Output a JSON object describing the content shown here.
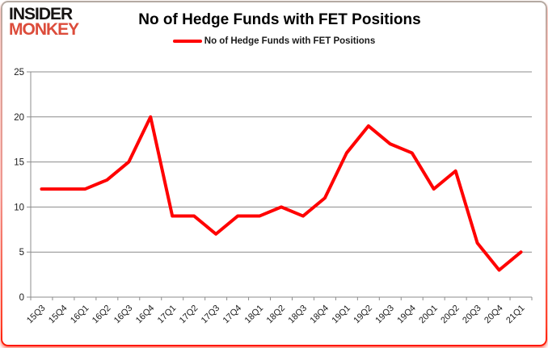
{
  "logo": {
    "line1": "INSIDER",
    "line2": "MONKEY"
  },
  "header": {
    "title": "No of Hedge Funds with FET Positions"
  },
  "legend": {
    "label": "No of Hedge Funds with FET Positions"
  },
  "colors": {
    "line": "#ff0000",
    "grid": "#8c8c8c",
    "axis": "#8c8c8c",
    "tick_text": "#1a1a1a",
    "logo_monkey": "#dc4c3b",
    "title_text": "#000000"
  },
  "chart_data": {
    "type": "line",
    "title": "No of Hedge Funds with FET Positions",
    "categories": [
      "15Q3",
      "15Q4",
      "16Q1",
      "16Q2",
      "16Q3",
      "16Q4",
      "17Q1",
      "17Q2",
      "17Q3",
      "17Q4",
      "18Q1",
      "18Q2",
      "18Q3",
      "18Q4",
      "19Q1",
      "19Q2",
      "19Q3",
      "19Q4",
      "20Q1",
      "20Q2",
      "20Q3",
      "20Q4",
      "21Q1"
    ],
    "series": [
      {
        "name": "No of Hedge Funds with FET Positions",
        "color": "#ff0000",
        "values": [
          12,
          12,
          12,
          13,
          15,
          20,
          9,
          9,
          7,
          9,
          9,
          10,
          9,
          11,
          16,
          19,
          17,
          16,
          12,
          14,
          6,
          3,
          5
        ]
      }
    ],
    "xlabel": "",
    "ylabel": "",
    "ylim": [
      0,
      25
    ],
    "yticks": [
      0,
      5,
      10,
      15,
      20,
      25
    ],
    "grid": true,
    "legend_position": "top"
  }
}
